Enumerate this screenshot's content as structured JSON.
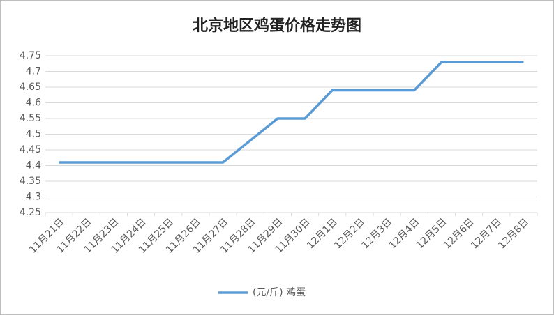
{
  "chart_data": {
    "type": "line",
    "title": "北京地区鸡蛋价格走势图",
    "categories": [
      "11月21日",
      "11月22日",
      "11月23日",
      "11月24日",
      "11月25日",
      "11月26日",
      "11月27日",
      "11月28日",
      "11月29日",
      "11月30日",
      "12月1日",
      "12月2日",
      "12月3日",
      "12月4日",
      "12月5日",
      "12月6日",
      "12月7日",
      "12月8日"
    ],
    "series": [
      {
        "name": "(元/斤) 鸡蛋",
        "color": "#5b9bd5",
        "values": [
          4.41,
          4.41,
          4.41,
          4.41,
          4.41,
          4.41,
          4.41,
          4.48,
          4.55,
          4.55,
          4.64,
          4.64,
          4.64,
          4.64,
          4.73,
          4.73,
          4.73,
          4.73
        ]
      }
    ],
    "ylim": [
      4.25,
      4.75
    ],
    "yticks": [
      4.25,
      4.3,
      4.35,
      4.4,
      4.45,
      4.5,
      4.55,
      4.6,
      4.65,
      4.7,
      4.75
    ],
    "grid": true,
    "legend": "bottom"
  }
}
